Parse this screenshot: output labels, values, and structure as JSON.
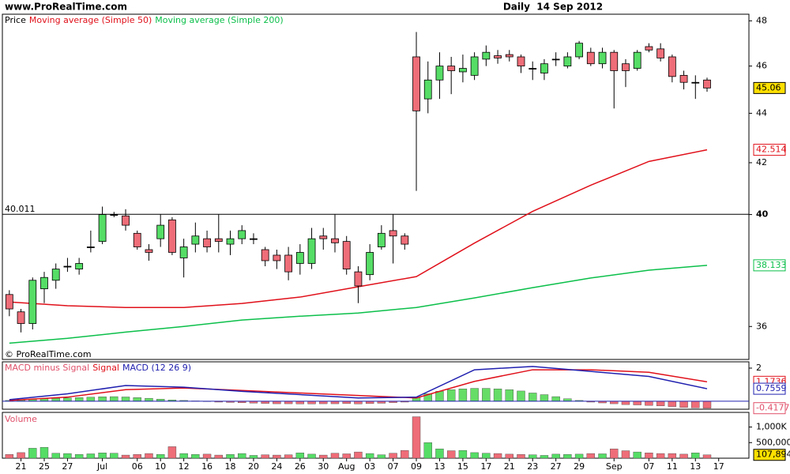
{
  "chart_data": [
    {
      "type": "candlestick",
      "title": "Daily  14 Sep 2012",
      "site": "www.ProRealTime.com",
      "watermark": "© ProRealTime.com",
      "log_scale": true,
      "grid": false,
      "ylim": [
        34.9,
        48.3
      ],
      "yticks": [
        36,
        40,
        42,
        44,
        46,
        48
      ],
      "xlim": [
        -0.6,
        63.6
      ],
      "level": 40.011,
      "xticks": [
        {
          "value": 1,
          "label": "21"
        },
        {
          "value": 3,
          "label": "25"
        },
        {
          "value": 5,
          "label": "27"
        },
        {
          "value": 8,
          "label": "Jul"
        },
        {
          "value": 11,
          "label": "06"
        },
        {
          "value": 13,
          "label": "10"
        },
        {
          "value": 15,
          "label": "12"
        },
        {
          "value": 17,
          "label": "16"
        },
        {
          "value": 19,
          "label": "18"
        },
        {
          "value": 21,
          "label": "20"
        },
        {
          "value": 23,
          "label": "24"
        },
        {
          "value": 25,
          "label": "26"
        },
        {
          "value": 27,
          "label": "30"
        },
        {
          "value": 29,
          "label": "Aug"
        },
        {
          "value": 31,
          "label": "03"
        },
        {
          "value": 33,
          "label": "07"
        },
        {
          "value": 35,
          "label": "09"
        },
        {
          "value": 37,
          "label": "13"
        },
        {
          "value": 39,
          "label": "15"
        },
        {
          "value": 41,
          "label": "17"
        },
        {
          "value": 43,
          "label": "21"
        },
        {
          "value": 45,
          "label": "23"
        },
        {
          "value": 47,
          "label": "27"
        },
        {
          "value": 49,
          "label": "29"
        },
        {
          "value": 52,
          "label": "Sep"
        },
        {
          "value": 55,
          "label": "07"
        },
        {
          "value": 57,
          "label": "11"
        },
        {
          "value": 59,
          "label": "13"
        },
        {
          "value": 61,
          "label": "17"
        }
      ],
      "series": [
        {
          "name": "Price",
          "color": "#000000",
          "up_color": "#55dd66",
          "down_color": "#ee6d78",
          "open": [
            37.1,
            36.5,
            36.1,
            37.3,
            37.6,
            38.1,
            38.0,
            38.8,
            39.0,
            40.0,
            39.95,
            39.3,
            38.7,
            39.1,
            39.8,
            38.4,
            38.9,
            39.1,
            39.1,
            38.9,
            39.1,
            39.1,
            38.7,
            38.5,
            38.5,
            38.2,
            38.2,
            39.2,
            39.1,
            39.0,
            37.9,
            37.8,
            38.8,
            39.4,
            39.2,
            46.4,
            44.6,
            45.4,
            46.0,
            45.75,
            45.6,
            46.3,
            46.45,
            46.5,
            46.4,
            45.9,
            45.7,
            46.3,
            46.0,
            46.4,
            46.6,
            46.1,
            46.6,
            46.1,
            45.9,
            46.85,
            46.75,
            46.4,
            45.6,
            45.3,
            45.4
          ],
          "high": [
            37.25,
            36.6,
            37.7,
            37.9,
            38.2,
            38.4,
            38.4,
            39.4,
            40.3,
            40.1,
            40.2,
            39.4,
            38.9,
            40.0,
            39.9,
            39.1,
            39.7,
            39.4,
            40.0,
            39.4,
            39.6,
            39.3,
            38.8,
            38.7,
            38.8,
            38.9,
            39.5,
            39.5,
            40.0,
            39.2,
            38.1,
            38.9,
            39.6,
            40.0,
            39.3,
            47.5,
            46.2,
            46.6,
            46.4,
            46.5,
            46.6,
            46.9,
            46.7,
            46.7,
            46.5,
            46.2,
            46.3,
            46.6,
            46.6,
            47.1,
            46.8,
            46.8,
            46.7,
            46.3,
            46.7,
            47.0,
            47.0,
            46.5,
            45.8,
            45.6,
            45.5
          ],
          "low": [
            36.35,
            35.8,
            35.9,
            36.8,
            37.3,
            37.9,
            37.8,
            38.6,
            38.9,
            39.9,
            39.4,
            38.7,
            38.3,
            38.8,
            38.5,
            37.7,
            38.6,
            38.6,
            38.6,
            38.5,
            38.9,
            38.9,
            38.1,
            38.0,
            37.6,
            37.8,
            38.0,
            38.7,
            38.6,
            37.8,
            36.8,
            37.6,
            38.7,
            38.2,
            38.7,
            40.9,
            44.0,
            44.6,
            44.8,
            45.3,
            45.4,
            46.0,
            46.1,
            46.2,
            45.7,
            45.4,
            45.4,
            46.0,
            45.9,
            46.3,
            46.0,
            45.9,
            44.2,
            45.1,
            45.8,
            46.6,
            46.2,
            45.3,
            45.0,
            44.6,
            44.9
          ],
          "close": [
            36.6,
            36.1,
            37.6,
            37.7,
            38.0,
            38.1,
            38.2,
            38.8,
            40.0,
            40.0,
            39.6,
            38.8,
            38.6,
            39.6,
            38.6,
            38.8,
            39.2,
            38.8,
            39.0,
            39.1,
            39.4,
            39.1,
            38.3,
            38.3,
            37.9,
            38.6,
            39.1,
            39.1,
            38.95,
            38.0,
            37.4,
            38.6,
            39.3,
            39.2,
            38.9,
            44.1,
            45.4,
            46.0,
            45.8,
            45.9,
            46.4,
            46.6,
            46.35,
            46.4,
            46.0,
            45.9,
            46.1,
            46.3,
            46.4,
            47.0,
            46.1,
            46.6,
            45.8,
            45.8,
            46.6,
            46.7,
            46.35,
            45.55,
            45.3,
            45.3,
            45.06
          ]
        },
        {
          "name": "Moving average (Simple 50)",
          "color": "#e0101a",
          "x": [
            0,
            5,
            10,
            15,
            20,
            25,
            30,
            35,
            40,
            45,
            50,
            55,
            60
          ],
          "values": [
            36.84,
            36.71,
            36.65,
            36.65,
            36.79,
            37.01,
            37.37,
            37.73,
            38.94,
            40.12,
            41.12,
            42.05,
            42.514
          ]
        },
        {
          "name": "Moving average (Simple 200)",
          "color": "#0bbf4a",
          "x": [
            0,
            5,
            10,
            15,
            20,
            25,
            30,
            35,
            40,
            45,
            50,
            55,
            60
          ],
          "values": [
            35.44,
            35.6,
            35.81,
            36.0,
            36.22,
            36.35,
            36.46,
            36.65,
            36.98,
            37.34,
            37.68,
            37.96,
            38.133
          ]
        }
      ]
    },
    {
      "type": "macd",
      "ylim": [
        -0.48,
        2.38
      ],
      "yticks": [
        2
      ],
      "series": [
        {
          "name": "MACD minus Signal",
          "color": "#e0506a",
          "up_color": "#66dd66",
          "down_color": "#ee6d78",
          "values": [
            0.05,
            0.08,
            0.12,
            0.15,
            0.18,
            0.2,
            0.22,
            0.25,
            0.27,
            0.28,
            0.26,
            0.22,
            0.18,
            0.13,
            0.08,
            0.05,
            0.02,
            -0.02,
            -0.05,
            -0.07,
            -0.09,
            -0.11,
            -0.13,
            -0.15,
            -0.15,
            -0.16,
            -0.16,
            -0.15,
            -0.15,
            -0.14,
            -0.16,
            -0.14,
            -0.12,
            -0.08,
            -0.05,
            0.25,
            0.45,
            0.6,
            0.7,
            0.75,
            0.78,
            0.78,
            0.75,
            0.7,
            0.62,
            0.5,
            0.4,
            0.28,
            0.15,
            0.05,
            -0.05,
            -0.1,
            -0.15,
            -0.2,
            -0.22,
            -0.25,
            -0.28,
            -0.32,
            -0.37,
            -0.4,
            -0.4177
          ]
        },
        {
          "name": "Signal",
          "color": "#e0101a",
          "x": [
            0,
            5,
            10,
            15,
            20,
            25,
            30,
            35,
            40,
            45,
            50,
            55,
            60
          ],
          "values": [
            0.05,
            0.25,
            0.7,
            0.8,
            0.65,
            0.5,
            0.35,
            0.2,
            1.2,
            1.9,
            1.9,
            1.75,
            1.1736
          ]
        },
        {
          "name": "MACD (12 26 9)",
          "color": "#2020b0",
          "x": [
            0,
            5,
            10,
            15,
            20,
            25,
            30,
            35,
            40,
            45,
            50,
            55,
            60
          ],
          "values": [
            0.1,
            0.45,
            0.95,
            0.85,
            0.6,
            0.4,
            0.2,
            0.25,
            1.9,
            2.1,
            1.8,
            1.5,
            0.7559
          ]
        }
      ]
    },
    {
      "type": "volume",
      "ylim": [
        0,
        1470000
      ],
      "yticks": [
        {
          "value": 500000,
          "label": "500,000"
        },
        {
          "value": 1000000,
          "label": "1,000K"
        }
      ],
      "series": [
        {
          "name": "Volume",
          "color": "#e0506a",
          "values": [
            120000,
            180000,
            320000,
            350000,
            160000,
            150000,
            120000,
            140000,
            170000,
            160000,
            100000,
            120000,
            150000,
            120000,
            370000,
            150000,
            120000,
            130000,
            100000,
            120000,
            150000,
            90000,
            110000,
            100000,
            110000,
            170000,
            130000,
            100000,
            160000,
            140000,
            200000,
            150000,
            110000,
            160000,
            250000,
            1330000,
            500000,
            300000,
            240000,
            250000,
            180000,
            160000,
            150000,
            130000,
            120000,
            110000,
            90000,
            130000,
            120000,
            130000,
            150000,
            140000,
            300000,
            240000,
            200000,
            170000,
            150000,
            150000,
            130000,
            170000,
            107894
          ],
          "value_labels": [
            null,
            null,
            null,
            null,
            null,
            null,
            null,
            null,
            null,
            null,
            null,
            null,
            null,
            null,
            null,
            null,
            null,
            null,
            null,
            null,
            null,
            null,
            null,
            null,
            null,
            null,
            null,
            null,
            null,
            null,
            null,
            null,
            null,
            null,
            null,
            null,
            null,
            null,
            null,
            null,
            null,
            null,
            null,
            null,
            null,
            null,
            null,
            null,
            null,
            null,
            null,
            null,
            null,
            null,
            null,
            null,
            null,
            null,
            null,
            null,
            "107,894"
          ]
        }
      ]
    }
  ]
}
